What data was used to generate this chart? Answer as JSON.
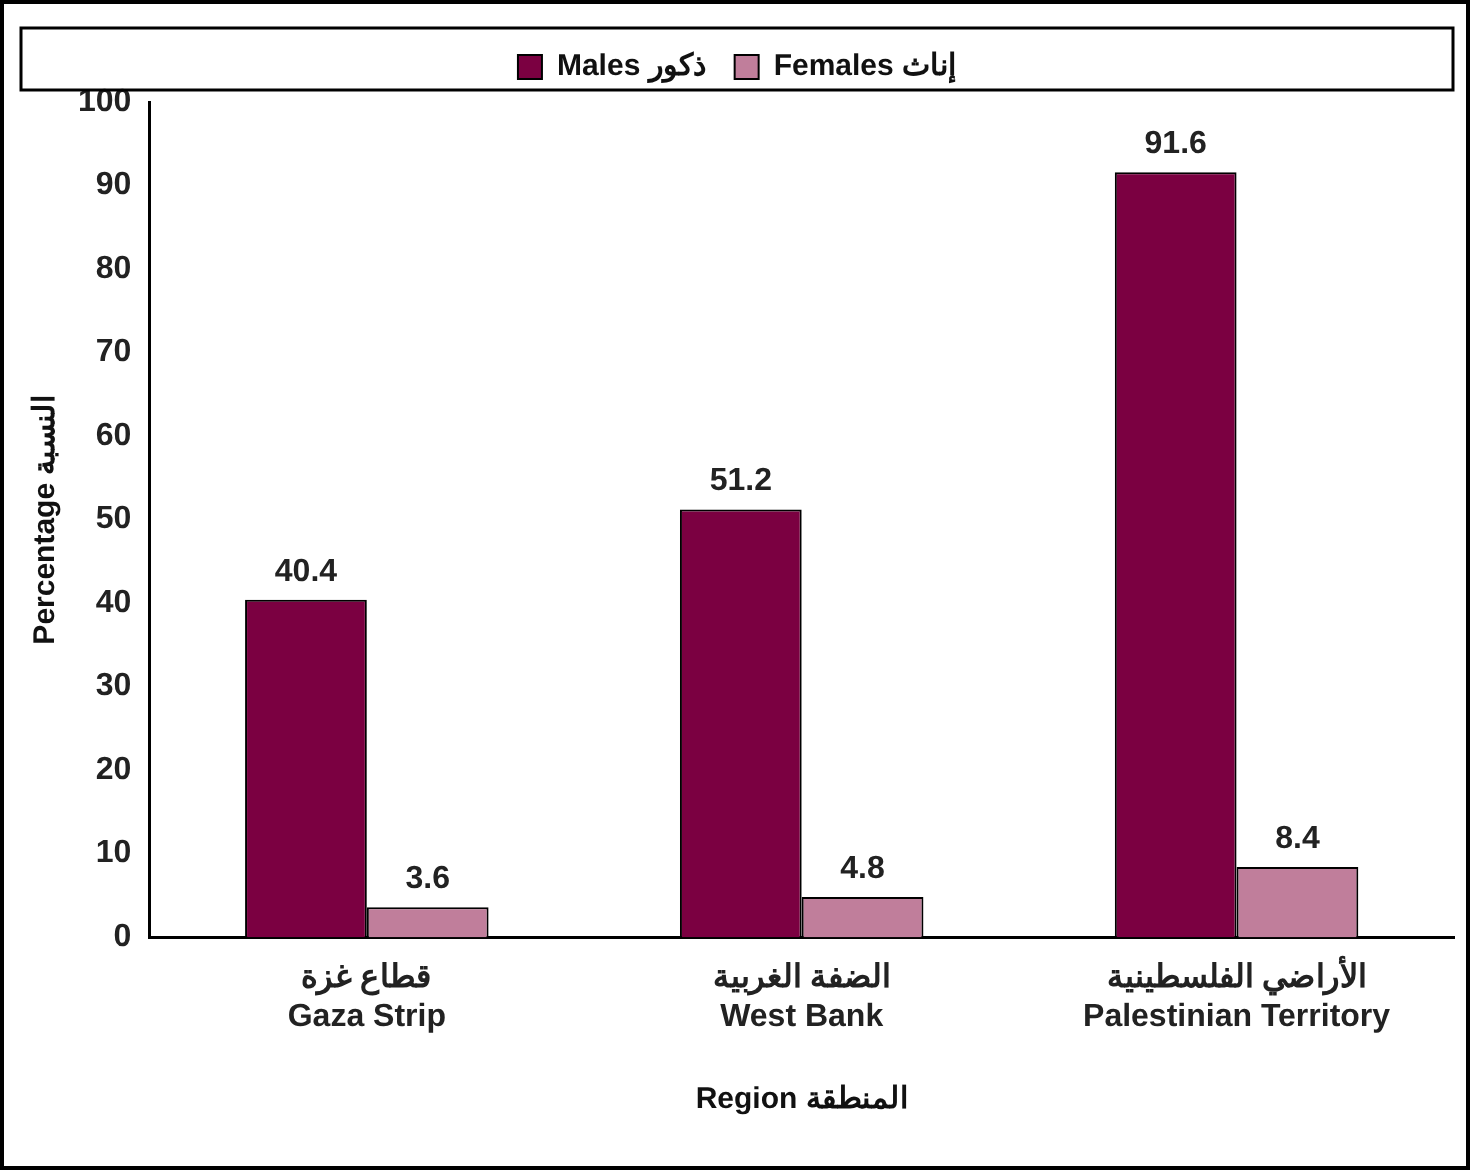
{
  "chart_data": {
    "type": "bar",
    "xlabel": "Region المنطقة",
    "ylabel": "Percentage النسبة",
    "categories": [
      "قطاع غزة\nGaza Strip",
      "الضفة الغربية\nWest Bank",
      "الأراضي الفلسطينية\nPalestinian Territory"
    ],
    "series": [
      {
        "name": "Males ذكور",
        "color": "#7b0041",
        "values": [
          40.4,
          51.2,
          91.6
        ]
      },
      {
        "name": "Females إناث",
        "color": "#c07e9b",
        "values": [
          3.6,
          4.8,
          8.4
        ]
      }
    ],
    "ylim": [
      0,
      100
    ],
    "yticks": [
      0,
      10,
      20,
      30,
      40,
      50,
      60,
      70,
      80,
      90,
      100
    ],
    "grid": false,
    "legend": "top",
    "data_labels": true
  }
}
